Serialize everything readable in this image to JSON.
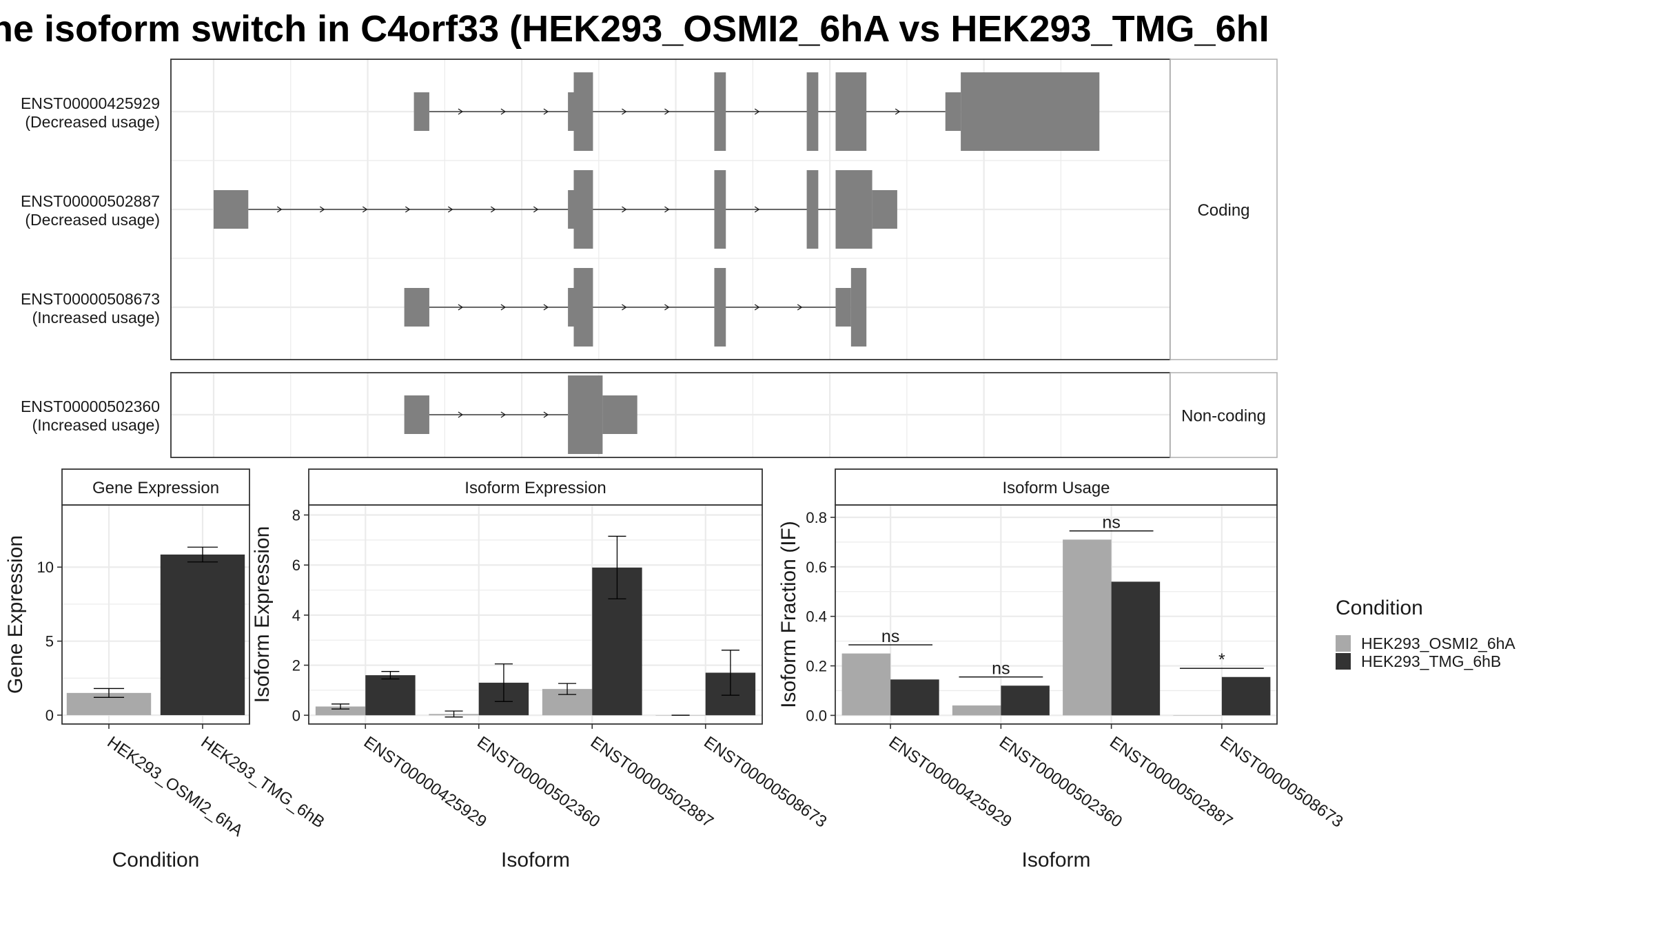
{
  "title": "he isoform switch in C4orf33 (HEK293_OSMI2_6hA vs HEK293_TMG_6hI",
  "colors": {
    "condition_a": "#a9a9a9",
    "condition_b": "#333333",
    "transcript": "#808080",
    "grid": "#ebebeb",
    "strip_bg": "#ffffff",
    "panel_border": "#333333"
  },
  "chart_data": [
    {
      "type": "transcript-structure",
      "facets": [
        {
          "label": "Coding",
          "transcripts": [
            {
              "id": "ENST00000425929",
              "usage": "(Decreased usage)",
              "exons": [
                [
                  1.12,
                  1.16,
                  "utr"
                ],
                [
                  1.52,
                  1.585,
                  "mixed",
                  1.535
                ],
                [
                  1.9,
                  1.93,
                  "cds"
                ],
                [
                  2.14,
                  2.17,
                  "cds"
                ],
                [
                  2.215,
                  2.295,
                  "cds"
                ],
                [
                  2.5,
                  2.9,
                  "mixed",
                  2.54
                ]
              ]
            },
            {
              "id": "ENST00000502887",
              "usage": "(Decreased usage)",
              "exons": [
                [
                  0.6,
                  0.69,
                  "utr"
                ],
                [
                  1.52,
                  1.585,
                  "mixed",
                  1.535
                ],
                [
                  1.9,
                  1.93,
                  "cds"
                ],
                [
                  2.14,
                  2.17,
                  "cds"
                ],
                [
                  2.215,
                  2.375,
                  "mixed",
                  2.31
                ]
              ]
            },
            {
              "id": "ENST00000508673",
              "usage": "(Increased usage)",
              "exons": [
                [
                  1.095,
                  1.16,
                  "utr"
                ],
                [
                  1.52,
                  1.585,
                  "mixed",
                  1.535
                ],
                [
                  1.9,
                  1.93,
                  "cds"
                ],
                [
                  2.215,
                  2.295,
                  "mixed",
                  2.255
                ]
              ]
            }
          ]
        },
        {
          "label": "Non-coding",
          "transcripts": [
            {
              "id": "ENST00000502360",
              "usage": "(Increased usage)",
              "exons": [
                [
                  1.095,
                  1.16,
                  "utr"
                ],
                [
                  1.52,
                  1.7,
                  "mixed",
                  1.61
                ]
              ]
            }
          ]
        }
      ]
    },
    {
      "type": "bar",
      "title": "Gene Expression",
      "xlabel": "Condition",
      "ylabel": "Gene Expression",
      "ylim": [
        -0.6,
        14.2
      ],
      "yticks": [
        0,
        5,
        10
      ],
      "categories": [
        "HEK293_OSMI2_6hA",
        "HEK293_TMG_6hB"
      ],
      "series": [
        {
          "name": "HEK293_OSMI2_6hA",
          "values": [
            1.5,
            null
          ],
          "errors": [
            0.3,
            null
          ]
        },
        {
          "name": "HEK293_TMG_6hB",
          "values": [
            null,
            10.85
          ],
          "errors": [
            null,
            0.5
          ]
        }
      ]
    },
    {
      "type": "bar",
      "title": "Isoform Expression",
      "xlabel": "Isoform",
      "ylabel": "Isoform Expression",
      "ylim": [
        -0.35,
        8.4
      ],
      "yticks": [
        0,
        2,
        4,
        6,
        8
      ],
      "categories": [
        "ENST00000425929",
        "ENST00000502360",
        "ENST00000502887",
        "ENST00000508673"
      ],
      "series": [
        {
          "name": "HEK293_OSMI2_6hA",
          "values": [
            0.35,
            0.05,
            1.05,
            0.0
          ],
          "errors": [
            0.1,
            0.12,
            0.22,
            0.0
          ]
        },
        {
          "name": "HEK293_TMG_6hB",
          "values": [
            1.6,
            1.3,
            5.9,
            1.7
          ],
          "errors": [
            0.15,
            0.75,
            1.25,
            0.9
          ]
        }
      ]
    },
    {
      "type": "bar",
      "title": "Isoform Usage",
      "xlabel": "Isoform",
      "ylabel": "Isoform Fraction (IF)",
      "ylim": [
        -0.035,
        0.85
      ],
      "yticks": [
        0.0,
        0.2,
        0.4,
        0.6,
        0.8
      ],
      "categories": [
        "ENST00000425929",
        "ENST00000502360",
        "ENST00000502887",
        "ENST00000508673"
      ],
      "series": [
        {
          "name": "HEK293_OSMI2_6hA",
          "values": [
            0.25,
            0.04,
            0.71,
            0.0
          ]
        },
        {
          "name": "HEK293_TMG_6hB",
          "values": [
            0.145,
            0.12,
            0.54,
            0.155
          ]
        }
      ],
      "significance": [
        {
          "label": "ns",
          "level": 0.285
        },
        {
          "label": "ns",
          "level": 0.155
        },
        {
          "label": "ns",
          "level": 0.745
        },
        {
          "label": "*",
          "level": 0.19
        }
      ]
    }
  ],
  "legend": {
    "title": "Condition",
    "items": [
      "HEK293_OSMI2_6hA",
      "HEK293_TMG_6hB"
    ]
  }
}
